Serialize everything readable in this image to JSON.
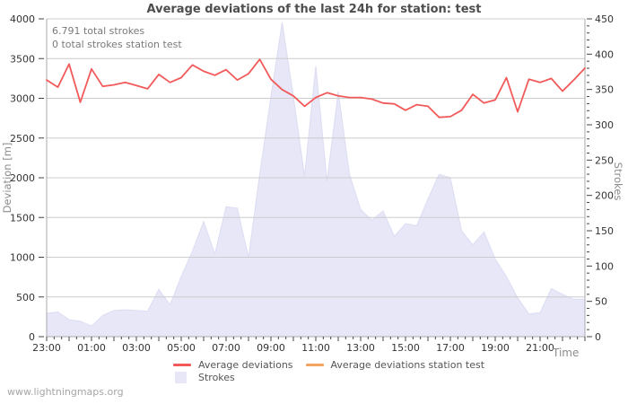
{
  "annotations": {
    "line1": "6.791 total strokes",
    "line2": "0 total strokes station test"
  },
  "watermark": "www.lightningmaps.org",
  "colors": {
    "line_red": "#f25a5a",
    "line_orange": "#f4a460",
    "area_strokes": "#e7e7f8",
    "area_edge": "#dcdcf3",
    "grid": "#cccccc",
    "axis": "#aaaaaa",
    "tick": "#444444",
    "title_text": "#4d4d4d",
    "tick_text": "#333333",
    "annotation_text": "#7a7a7a",
    "watermark_text": "#a6a6a6"
  },
  "legend": {
    "items": [
      {
        "label": "Average deviations",
        "color": "#f25a5a",
        "type": "line"
      },
      {
        "label": "Average deviations station test",
        "color": "#f4a460",
        "type": "line"
      },
      {
        "label": "Strokes",
        "color": "#e7e7f8",
        "type": "area"
      }
    ]
  },
  "chart_data": {
    "type": "line",
    "title": "Average deviations of the last 24h for station: test",
    "grid": true,
    "legend_position": "bottom",
    "x_axis": {
      "label": "Time",
      "tick_labels": [
        "23:00",
        "01:00",
        "03:00",
        "05:00",
        "07:00",
        "09:00",
        "11:00",
        "13:00",
        "15:00",
        "17:00",
        "19:00",
        "21:00"
      ],
      "span_minutes": 1440,
      "label_tick_minutes": 120,
      "major_tick_minutes": 60,
      "minor_tick_minutes": 20
    },
    "y_left": {
      "label": "Deviation [m]",
      "lim": [
        0,
        4000
      ],
      "tick_labels": [
        "0",
        "500",
        "1000",
        "1500",
        "2000",
        "2500",
        "3000",
        "3500",
        "4000"
      ]
    },
    "y_right": {
      "label": "Strokes",
      "lim": [
        0,
        450
      ],
      "tick_labels": [
        "0",
        "50",
        "100",
        "150",
        "200",
        "250",
        "300",
        "350",
        "400",
        "450"
      ],
      "minor_step": 10
    },
    "x": [
      "23:00",
      "23:30",
      "00:00",
      "00:30",
      "01:00",
      "01:30",
      "02:00",
      "02:30",
      "03:00",
      "03:30",
      "04:00",
      "04:30",
      "05:00",
      "05:30",
      "06:00",
      "06:30",
      "07:00",
      "07:30",
      "08:00",
      "08:30",
      "09:00",
      "09:30",
      "10:00",
      "10:30",
      "11:00",
      "11:30",
      "12:00",
      "12:30",
      "13:00",
      "13:30",
      "14:00",
      "14:30",
      "15:00",
      "15:30",
      "16:00",
      "16:30",
      "17:00",
      "17:30",
      "18:00",
      "18:30",
      "19:00",
      "19:30",
      "20:00",
      "20:30",
      "21:00",
      "21:30",
      "22:00",
      "22:30",
      "23:00"
    ],
    "series": [
      {
        "name": "Average deviations",
        "axis": "left",
        "type": "line",
        "color": "#f25a5a",
        "values": [
          3230,
          3140,
          3430,
          2950,
          3370,
          3150,
          3170,
          3200,
          3160,
          3120,
          3300,
          3200,
          3260,
          3420,
          3340,
          3290,
          3360,
          3230,
          3310,
          3490,
          3240,
          3110,
          3030,
          2900,
          3010,
          3070,
          3030,
          3010,
          3010,
          2990,
          2940,
          2930,
          2850,
          2920,
          2900,
          2760,
          2770,
          2850,
          3050,
          2940,
          2980,
          3260,
          2830,
          3240,
          3200,
          3250,
          3090,
          3230,
          3380
        ]
      },
      {
        "name": "Average deviations station test",
        "axis": "left",
        "type": "line",
        "color": "#f4a460",
        "values": []
      },
      {
        "name": "Strokes",
        "axis": "right",
        "type": "area",
        "color": "#e7e7f8",
        "values": [
          33,
          35,
          24,
          22,
          15,
          30,
          37,
          38,
          37,
          36,
          67,
          45,
          85,
          121,
          163,
          117,
          184,
          182,
          112,
          230,
          340,
          445,
          340,
          227,
          383,
          220,
          347,
          230,
          180,
          165,
          178,
          142,
          160,
          157,
          195,
          230,
          225,
          150,
          130,
          148,
          110,
          85,
          55,
          32,
          34,
          68,
          60,
          53,
          53
        ]
      }
    ]
  }
}
